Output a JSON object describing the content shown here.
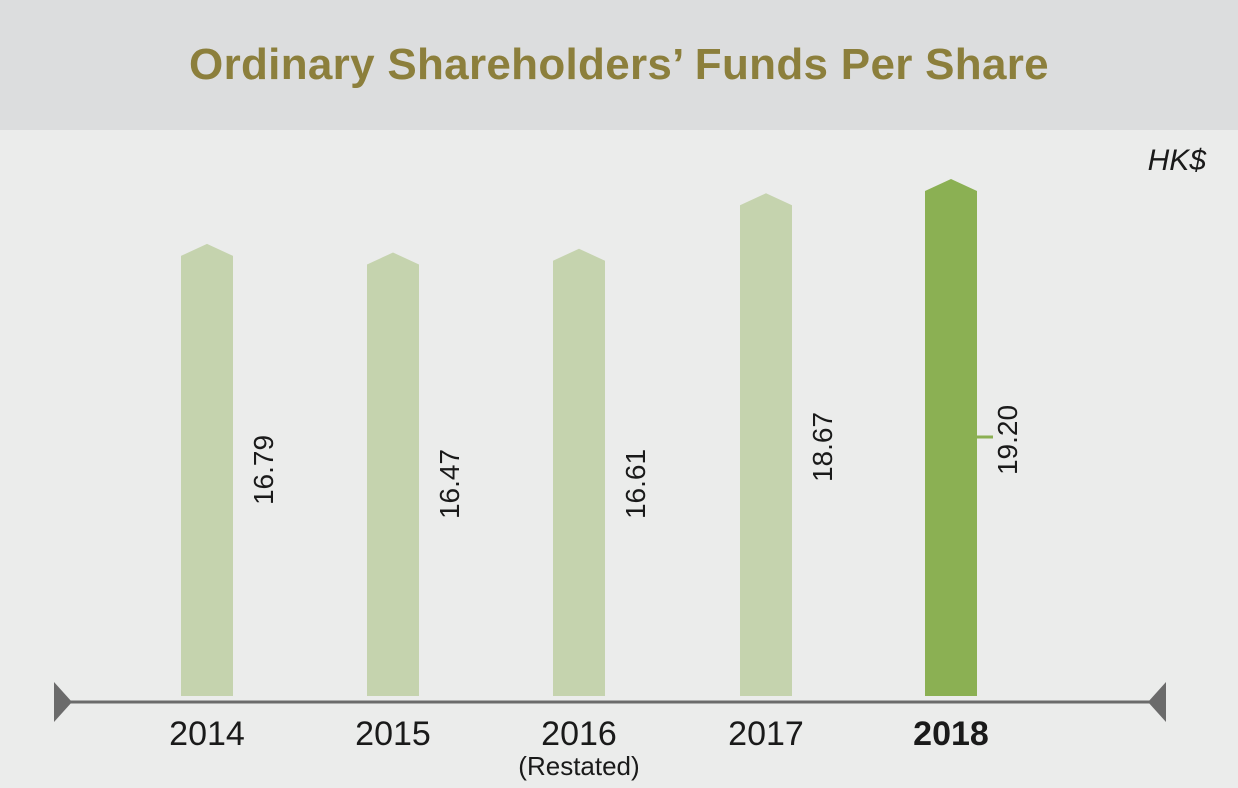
{
  "title": "Ordinary Shareholders’ Funds Per Share",
  "unit": "HK$",
  "colors": {
    "bar": "#c5d3ae",
    "highlight_bar": "#8bb053",
    "axis": "#6b6b6b",
    "title": "#8c7f3c"
  },
  "chart_data": {
    "type": "bar",
    "categories": [
      "2014",
      "2015",
      "2016",
      "2017",
      "2018"
    ],
    "category_notes": [
      "",
      "",
      "(Restated)",
      "",
      ""
    ],
    "values": [
      16.79,
      16.47,
      16.61,
      18.67,
      19.2
    ],
    "value_labels": [
      "16.79",
      "16.47",
      "16.61",
      "18.67",
      "19.20"
    ],
    "highlight_index": 4,
    "ylabel": "HK$",
    "ylim": [
      0,
      19.2
    ],
    "grid": false
  }
}
